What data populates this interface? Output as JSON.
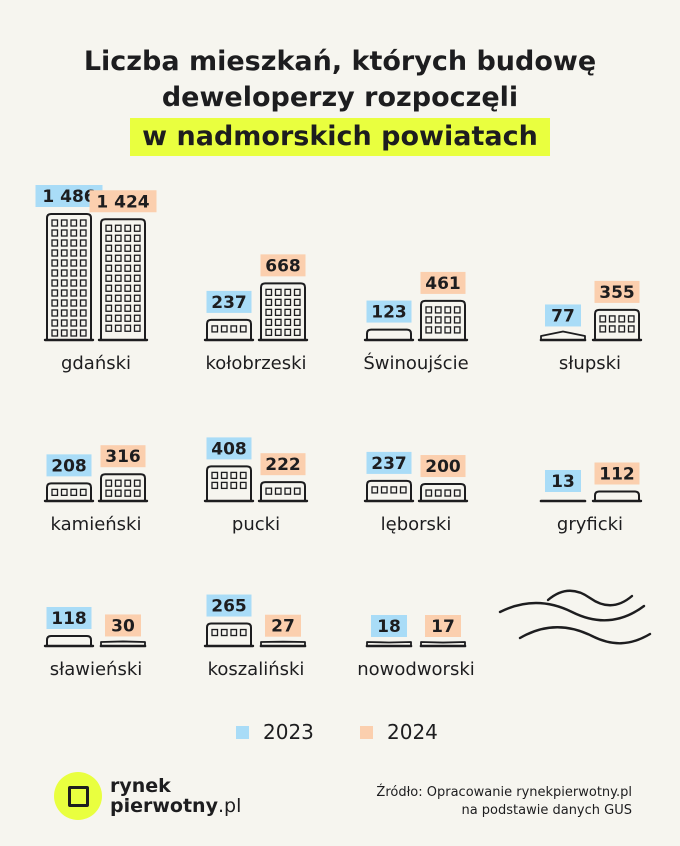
{
  "title": {
    "line1": "Liczba mieszkań, których budowę",
    "line2": "deweloperzy rozpoczęli",
    "line3": "w nadmorskich powiatach"
  },
  "colors": {
    "y2023": "#a9dcf7",
    "y2024": "#fbcfae",
    "highlight": "#e9ff3f",
    "ink": "#1d1d1f",
    "background": "#f6f5ef"
  },
  "chart_data": {
    "type": "bar",
    "categories": [
      "gdański",
      "kołobrzeski",
      "Świnoujście",
      "słupski",
      "kamieński",
      "pucki",
      "lęborski",
      "gryficki",
      "sławieński",
      "koszaliński",
      "nowodworski"
    ],
    "series": [
      {
        "name": "2023",
        "values": [
          1486,
          237,
          123,
          77,
          208,
          408,
          237,
          13,
          118,
          265,
          18
        ],
        "labels": [
          "1 486",
          "237",
          "123",
          "77",
          "208",
          "408",
          "237",
          "13",
          "118",
          "265",
          "18"
        ]
      },
      {
        "name": "2024",
        "values": [
          1424,
          668,
          461,
          355,
          316,
          222,
          200,
          112,
          30,
          27,
          17
        ],
        "labels": [
          "1 424",
          "668",
          "461",
          "355",
          "316",
          "222",
          "200",
          "112",
          "30",
          "27",
          "17"
        ]
      }
    ]
  },
  "legend": {
    "y2023": "2023",
    "y2024": "2024"
  },
  "logo": {
    "line1": "rynek",
    "line2_bold": "pierwotny",
    "line2_thin": ".pl"
  },
  "source": {
    "line1": "Źródło: Opracowanie rynekpierwotny.pl",
    "line2": "na podstawie danych GUS"
  },
  "decoration": {
    "waves_icon": "waves-icon",
    "building_icon": "building-icon"
  }
}
